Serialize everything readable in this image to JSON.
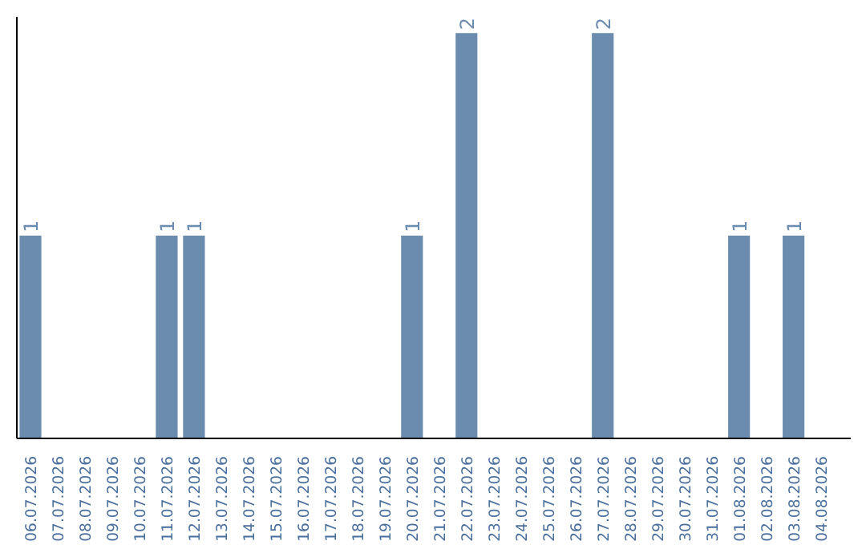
{
  "chart_data": {
    "type": "bar",
    "categories": [
      "06.07.2026",
      "07.07.2026",
      "08.07.2026",
      "09.07.2026",
      "10.07.2026",
      "11.07.2026",
      "12.07.2026",
      "13.07.2026",
      "14.07.2026",
      "15.07.2026",
      "16.07.2026",
      "17.07.2026",
      "18.07.2026",
      "19.07.2026",
      "20.07.2026",
      "21.07.2026",
      "22.07.2026",
      "23.07.2026",
      "24.07.2026",
      "25.07.2026",
      "26.07.2026",
      "27.07.2026",
      "28.07.2026",
      "29.07.2026",
      "30.07.2026",
      "31.07.2026",
      "01.08.2026",
      "02.08.2026",
      "03.08.2026",
      "04.08.2026"
    ],
    "values": [
      1,
      0,
      0,
      0,
      0,
      1,
      1,
      0,
      0,
      0,
      0,
      0,
      0,
      0,
      1,
      0,
      2,
      0,
      0,
      0,
      0,
      2,
      0,
      0,
      0,
      0,
      1,
      0,
      1,
      0
    ],
    "value_labels": [
      "1",
      null,
      null,
      null,
      null,
      "1",
      "1",
      null,
      null,
      null,
      null,
      null,
      null,
      null,
      "1",
      null,
      "2",
      null,
      null,
      null,
      null,
      "2",
      null,
      null,
      null,
      null,
      "1",
      null,
      "1",
      null
    ],
    "color": "#6b8cae",
    "grid": false
  }
}
